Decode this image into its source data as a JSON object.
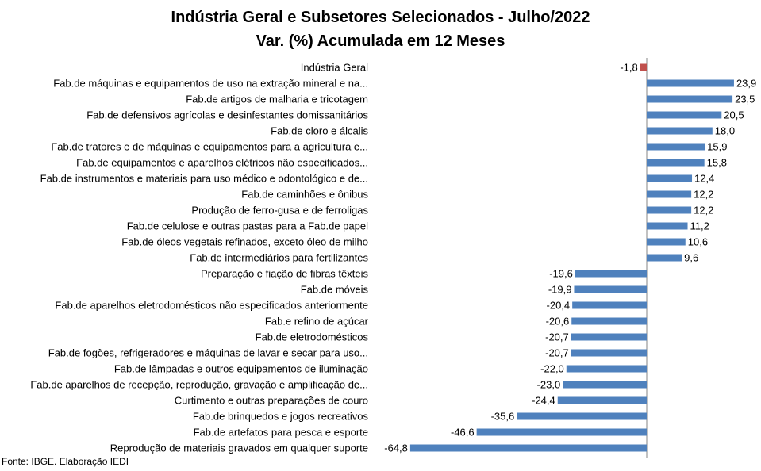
{
  "chart_data": {
    "type": "bar",
    "orientation": "horizontal",
    "title": "Indústria Geral e Subsetores Selecionados - Julho/2022",
    "subtitle": "Var. (%) Acumulada em 12 Meses",
    "categories": [
      "Indústria Geral",
      "Fab.de máquinas e equipamentos de uso na extração mineral e na...",
      "Fab.de artigos de malharia e tricotagem",
      "Fab.de defensivos agrícolas e desinfestantes domissanitários",
      "Fab.de cloro e álcalis",
      "Fab.de tratores e de máquinas e equipamentos para a agricultura e...",
      "Fab.de equipamentos e aparelhos elétricos não especificados...",
      "Fab.de instrumentos e materiais para uso médico e odontológico e de...",
      "Fab.de caminhões e ônibus",
      "Produção de ferro-gusa e de ferroligas",
      "Fab.de celulose e outras pastas para a Fab.de papel",
      "Fab.de óleos vegetais refinados, exceto óleo de milho",
      "Fab.de intermediários para fertilizantes",
      "Preparação e fiação de fibras têxteis",
      "Fab.de móveis",
      "Fab.de aparelhos eletrodomésticos não especificados anteriormente",
      "Fab.e refino de açúcar",
      "Fab.de eletrodomésticos",
      "Fab.de fogões, refrigeradores e máquinas de lavar e secar para uso...",
      "Fab.de lâmpadas e outros equipamentos de iluminação",
      "Fab.de aparelhos de recepção, reprodução, gravação e amplificação de...",
      "Curtimento e outras preparações de couro",
      "Fab.de brinquedos e jogos recreativos",
      "Fab.de artefatos para pesca e esporte",
      "Reprodução de materiais gravados em qualquer suporte"
    ],
    "values": [
      -1.8,
      23.9,
      23.5,
      20.5,
      18.0,
      15.9,
      15.8,
      12.4,
      12.2,
      12.2,
      11.2,
      10.6,
      9.6,
      -19.6,
      -19.9,
      -20.4,
      -20.6,
      -20.7,
      -20.7,
      -22.0,
      -23.0,
      -24.4,
      -35.6,
      -46.6,
      -64.8
    ],
    "value_labels": [
      "-1,8",
      "23,9",
      "23,5",
      "20,5",
      "18,0",
      "15,9",
      "15,8",
      "12,4",
      "12,2",
      "12,2",
      "11,2",
      "10,6",
      "9,6",
      "-19,6",
      "-19,9",
      "-20,4",
      "-20,6",
      "-20,7",
      "-20,7",
      "-22,0",
      "-23,0",
      "-24,4",
      "-35,6",
      "-46,6",
      "-64,8"
    ],
    "xlim": [
      -64.8,
      23.9
    ],
    "grid": false,
    "legend": "none",
    "colors": {
      "bar": "#4f81bd",
      "highlight": "#c0504d",
      "axis": "#868686"
    }
  },
  "footer": {
    "source": "Fonte: IBGE. Elaboração IEDI"
  }
}
